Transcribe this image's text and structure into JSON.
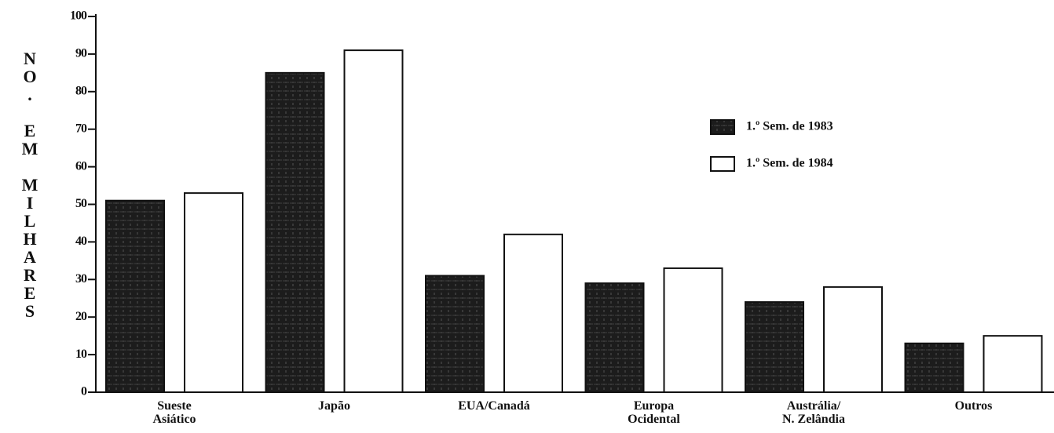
{
  "chart_data": {
    "type": "bar",
    "y_label": "NO. EM MILHARES",
    "categories": [
      "Sueste\nAsiático",
      "Japão",
      "EUA/Canadá",
      "Europa\nOcidental",
      "Austrália/\nN. Zelândia",
      "Outros"
    ],
    "series": [
      {
        "name": "1.º Sem. de 1983",
        "color": "#1c1c1c",
        "values": [
          51,
          85,
          31,
          29,
          24,
          13
        ]
      },
      {
        "name": "1.º Sem. de 1984",
        "color": "#ffffff",
        "values": [
          53,
          91,
          42,
          33,
          28,
          15
        ]
      }
    ],
    "ylim": [
      0,
      100
    ],
    "yticks": [
      0,
      10,
      20,
      30,
      40,
      50,
      60,
      70,
      80,
      90,
      100
    ],
    "legend": "right"
  }
}
